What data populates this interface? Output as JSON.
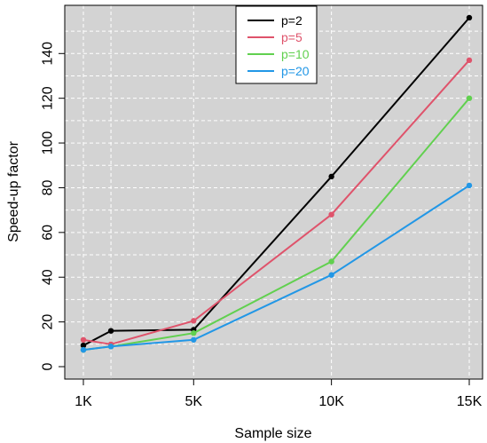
{
  "chart_data": {
    "type": "line",
    "title": "",
    "xlabel": "Sample size",
    "ylabel": "Speed-up factor",
    "x_ticks": [
      {
        "value": 1000,
        "label": "1K"
      },
      {
        "value": 5000,
        "label": "5K"
      },
      {
        "value": 10000,
        "label": "10K"
      },
      {
        "value": 15000,
        "label": "15K"
      }
    ],
    "y_ticks": [
      0,
      20,
      40,
      60,
      80,
      100,
      120,
      140
    ],
    "xlim": [
      1000,
      15000
    ],
    "ylim": [
      0,
      155
    ],
    "grid": true,
    "legend_position": "top-center",
    "background_color": "#d3d3d3",
    "grid_color": "#ffffff",
    "series": [
      {
        "name": "p=2",
        "color": "#000000",
        "x": [
          1000,
          2000,
          5000,
          10000,
          15000
        ],
        "y": [
          9.5,
          16,
          16.5,
          85,
          156
        ]
      },
      {
        "name": "p=5",
        "color": "#df536b",
        "x": [
          1000,
          2000,
          5000,
          10000,
          15000
        ],
        "y": [
          12,
          10,
          20.5,
          68,
          137
        ]
      },
      {
        "name": "p=10",
        "color": "#61d04f",
        "x": [
          1000,
          2000,
          5000,
          10000,
          15000
        ],
        "y": [
          7.5,
          9,
          15,
          47,
          120
        ]
      },
      {
        "name": "p=20",
        "color": "#2297e6",
        "x": [
          1000,
          2000,
          5000,
          10000,
          15000
        ],
        "y": [
          7.5,
          9,
          12,
          41,
          81
        ]
      }
    ]
  }
}
